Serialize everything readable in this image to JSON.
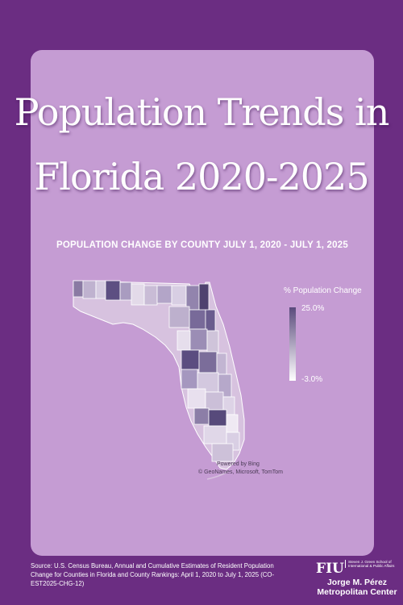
{
  "title_line1": "Population Trends in",
  "title_line2": "Florida 2020-2025",
  "subtitle": "POPULATION CHANGE BY COUNTY JULY 1, 2020 - JULY 1, 2025",
  "legend": {
    "title": "% Population Change",
    "max_label": "25.0%",
    "min_label": "-3.0%",
    "color_high": "#5a4a7c",
    "color_low": "#ffffff"
  },
  "map_credit_line1": "Powered by Bing",
  "map_credit_line2": "© GeoNames, Microsoft, TomTom",
  "source": "Source: U.S. Census Bureau, Annual and Cumulative Estimates of Resident Population Change for Counties in Florida and County Rankings: April 1, 2020 to July 1, 2025 (CO-EST2025-CHG-12)",
  "logo": {
    "fiu": "FIU",
    "school": "Steven J. Green School of International & Public Affairs",
    "center_line1": "Jorge M. Pérez",
    "center_line2": "Metropolitan Center"
  },
  "colors": {
    "background": "#6b2d82",
    "card": "#c59cd3",
    "text": "#ffffff"
  }
}
